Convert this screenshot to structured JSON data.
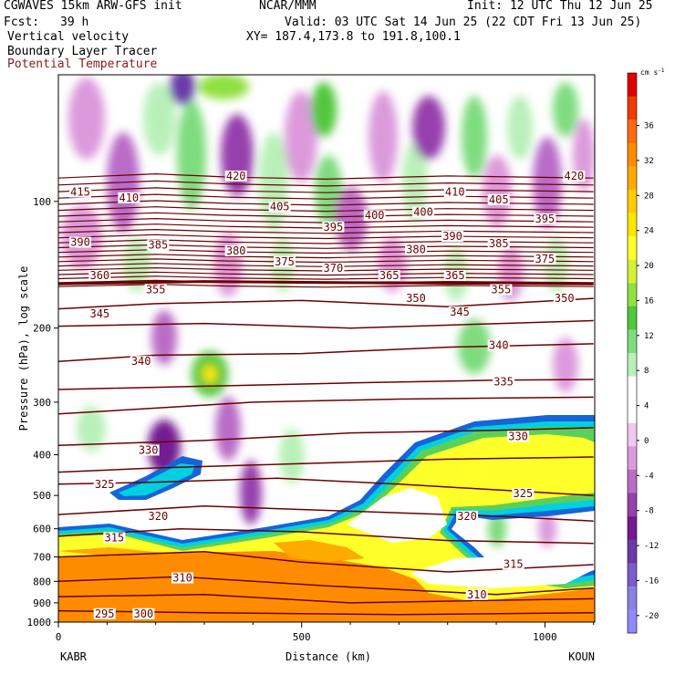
{
  "header": {
    "model": "CGWAVES 15km ARW-GFS init",
    "org": "NCAR/MMM",
    "init": "Init: 12 UTC Thu 12 Jun 25",
    "fcst_label": "Fcst:",
    "fcst_value": "39 h",
    "valid": "Valid: 03 UTC Sat 14 Jun 25 (22 CDT Fri 13 Jun 25)",
    "field1": "Vertical velocity",
    "field2": "Boundary Layer Tracer",
    "field3": "Potential Temperature",
    "xy": "XY= 187.4,173.8 to 191.8,100.1"
  },
  "colors": {
    "theta_contour": "#6b0000",
    "tracer": "#1565d8"
  },
  "chart_data": {
    "type": "heatmap",
    "ylabel": "Pressure (hPa), log scale",
    "xlabel": "Distance (km)",
    "x_ticks": [
      0,
      500,
      1000
    ],
    "xlim": [
      0,
      1100
    ],
    "y_ticks": [
      100,
      200,
      300,
      400,
      500,
      600,
      700,
      800,
      900,
      1000
    ],
    "y_scale": "log",
    "left_endpoint": "KABR",
    "right_endpoint": "KOUN",
    "colorbar": {
      "unit": "cm s",
      "unit_exp": "-1",
      "tick_labels": [
        "36",
        "32",
        "28",
        "24",
        "20",
        "16",
        "12",
        "8",
        "4",
        "0",
        "-4",
        "-8",
        "-12",
        "-16",
        "-20"
      ],
      "colors": [
        "#e00000",
        "#f03c00",
        "#ff6a10",
        "#ff8c00",
        "#ffaa00",
        "#ffcc00",
        "#ffe600",
        "#ffff2a",
        "#d4f038",
        "#8fe040",
        "#4fc83a",
        "#7edc7e",
        "#b9f0b9",
        "#ffffff",
        "#ffffff",
        "#f0c8f0",
        "#dc9adc",
        "#b96cc8",
        "#9640ad",
        "#731a91",
        "#6a3aa8",
        "#7a5ccc",
        "#8a80e0",
        "#8c8cff"
      ]
    },
    "theta_labels": [
      "420",
      "415",
      "410",
      "405",
      "400",
      "395",
      "390",
      "385",
      "380",
      "375",
      "370",
      "365",
      "360",
      "355",
      "350",
      "345",
      "340",
      "335",
      "330",
      "325",
      "320",
      "315",
      "310",
      "300",
      "295"
    ],
    "theta_label_points": [
      {
        "v": "420",
        "x": 365,
        "p": 87
      },
      {
        "v": "420",
        "x": 1060,
        "p": 87
      },
      {
        "v": "415",
        "x": 45,
        "p": 95
      },
      {
        "v": "410",
        "x": 145,
        "p": 98
      },
      {
        "v": "410",
        "x": 815,
        "p": 95
      },
      {
        "v": "405",
        "x": 455,
        "p": 103
      },
      {
        "v": "405",
        "x": 905,
        "p": 99
      },
      {
        "v": "400",
        "x": 650,
        "p": 108
      },
      {
        "v": "400",
        "x": 750,
        "p": 106
      },
      {
        "v": "395",
        "x": 565,
        "p": 115
      },
      {
        "v": "395",
        "x": 1000,
        "p": 110
      },
      {
        "v": "390",
        "x": 45,
        "p": 125
      },
      {
        "v": "390",
        "x": 810,
        "p": 121
      },
      {
        "v": "385",
        "x": 205,
        "p": 127
      },
      {
        "v": "385",
        "x": 905,
        "p": 126
      },
      {
        "v": "380",
        "x": 365,
        "p": 131
      },
      {
        "v": "380",
        "x": 735,
        "p": 130
      },
      {
        "v": "375",
        "x": 465,
        "p": 139
      },
      {
        "v": "375",
        "x": 1000,
        "p": 137
      },
      {
        "v": "370",
        "x": 565,
        "p": 144
      },
      {
        "v": "365",
        "x": 680,
        "p": 150
      },
      {
        "v": "365",
        "x": 815,
        "p": 150
      },
      {
        "v": "360",
        "x": 85,
        "p": 150
      },
      {
        "v": "355",
        "x": 200,
        "p": 162
      },
      {
        "v": "355",
        "x": 910,
        "p": 162
      },
      {
        "v": "350",
        "x": 735,
        "p": 170
      },
      {
        "v": "350",
        "x": 1040,
        "p": 170
      },
      {
        "v": "345",
        "x": 85,
        "p": 185
      },
      {
        "v": "345",
        "x": 825,
        "p": 183
      },
      {
        "v": "340",
        "x": 170,
        "p": 240
      },
      {
        "v": "340",
        "x": 905,
        "p": 220
      },
      {
        "v": "335",
        "x": 915,
        "p": 268
      },
      {
        "v": "330",
        "x": 185,
        "p": 390
      },
      {
        "v": "330",
        "x": 945,
        "p": 362
      },
      {
        "v": "325",
        "x": 95,
        "p": 470
      },
      {
        "v": "325",
        "x": 955,
        "p": 495
      },
      {
        "v": "320",
        "x": 205,
        "p": 560
      },
      {
        "v": "320",
        "x": 840,
        "p": 560
      },
      {
        "v": "315",
        "x": 115,
        "p": 630
      },
      {
        "v": "315",
        "x": 935,
        "p": 728
      },
      {
        "v": "310",
        "x": 255,
        "p": 785
      },
      {
        "v": "310",
        "x": 860,
        "p": 860
      },
      {
        "v": "300",
        "x": 175,
        "p": 955
      },
      {
        "v": "295",
        "x": 95,
        "p": 955
      }
    ]
  }
}
